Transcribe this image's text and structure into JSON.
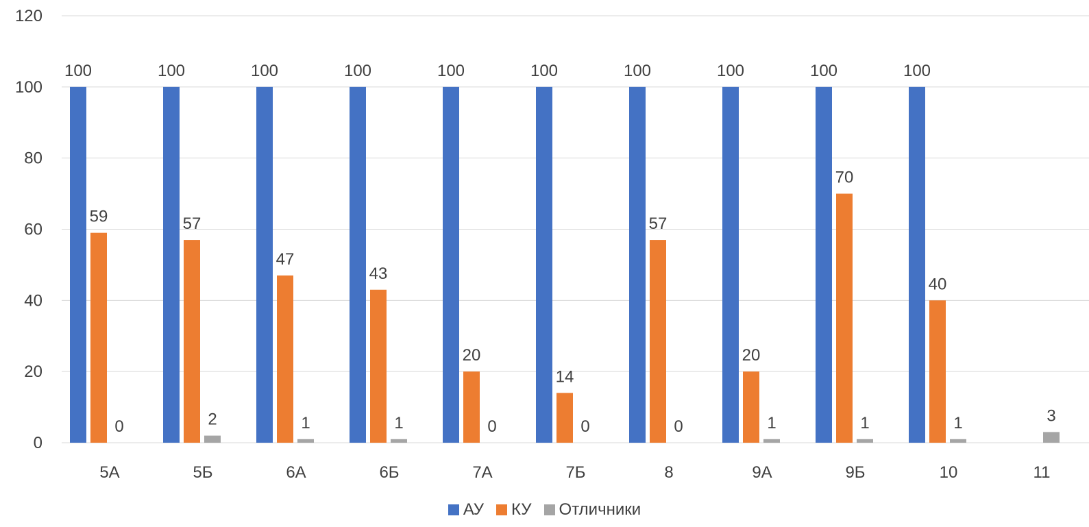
{
  "chart_data": {
    "type": "bar",
    "title": "",
    "xlabel": "",
    "ylabel": "",
    "categories": [
      "5А",
      "5Б",
      "6А",
      "6Б",
      "7А",
      "7Б",
      "8",
      "9А",
      "9Б",
      "10",
      "11"
    ],
    "ylim": [
      0,
      120
    ],
    "yticks": [
      "0",
      "20",
      "40",
      "60",
      "80",
      "100",
      "120"
    ],
    "grid": true,
    "legend_position": "bottom",
    "series": [
      {
        "name": "АУ",
        "color": "#4472C4",
        "values": [
          100,
          100,
          100,
          100,
          100,
          100,
          100,
          100,
          100,
          100,
          null
        ]
      },
      {
        "name": "КУ",
        "color": "#ED7D31",
        "values": [
          59,
          57,
          47,
          43,
          20,
          14,
          57,
          20,
          70,
          40,
          null
        ]
      },
      {
        "name": "Отличники",
        "color": "#A5A5A5",
        "values": [
          0,
          2,
          1,
          1,
          0,
          0,
          0,
          1,
          1,
          1,
          3
        ]
      }
    ]
  }
}
